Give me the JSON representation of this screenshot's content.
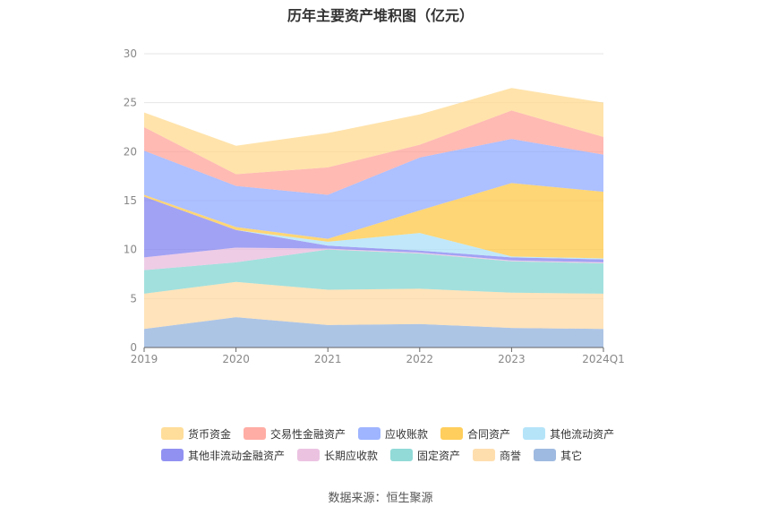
{
  "chart_data": {
    "type": "area",
    "stacked": true,
    "title": "历年主要资产堆积图（亿元）",
    "categories": [
      "2019",
      "2020",
      "2021",
      "2022",
      "2023",
      "2024Q1"
    ],
    "ylim": [
      0,
      30
    ],
    "yticks": [
      "0",
      "5",
      "10",
      "15",
      "20",
      "25",
      "30"
    ],
    "grid": true,
    "legend_position": "bottom",
    "series": [
      {
        "name": "其它",
        "color": "#8EAEDB",
        "values": [
          1.9,
          3.1,
          2.3,
          2.4,
          2.0,
          1.9
        ]
      },
      {
        "name": "商誉",
        "color": "#FFD8A0",
        "values": [
          3.6,
          3.6,
          3.6,
          3.6,
          3.6,
          3.6
        ]
      },
      {
        "name": "固定资产",
        "color": "#7ED4D0",
        "values": [
          2.4,
          2.0,
          4.1,
          3.6,
          3.2,
          3.1
        ]
      },
      {
        "name": "长期应收款",
        "color": "#E8B8DC",
        "values": [
          1.3,
          1.5,
          0.1,
          0.1,
          0.1,
          0.1
        ]
      },
      {
        "name": "其他非流动金融资产",
        "color": "#7E7EF0",
        "values": [
          6.2,
          1.8,
          0.3,
          0.2,
          0.3,
          0.3
        ]
      },
      {
        "name": "其他流动资产",
        "color": "#A8DFF8",
        "values": [
          0.0,
          0.0,
          0.4,
          1.8,
          0.1,
          0.1
        ]
      },
      {
        "name": "合同资产",
        "color": "#FFC640",
        "values": [
          0.2,
          0.3,
          0.3,
          2.3,
          7.5,
          6.8
        ]
      },
      {
        "name": "应收账款",
        "color": "#8EA8FF",
        "values": [
          4.5,
          4.2,
          4.5,
          5.4,
          4.5,
          3.8
        ]
      },
      {
        "name": "交易性金融资产",
        "color": "#FF9F95",
        "values": [
          2.4,
          1.2,
          2.8,
          1.3,
          2.9,
          1.8
        ]
      },
      {
        "name": "货币资金",
        "color": "#FFD88A",
        "values": [
          1.5,
          2.9,
          3.5,
          3.1,
          2.3,
          3.5
        ]
      }
    ],
    "legend": [
      [
        "货币资金",
        "交易性金融资产",
        "应收账款",
        "合同资产",
        "其他流动资产"
      ],
      [
        "其他非流动金融资产",
        "长期应收款",
        "固定资产",
        "商誉",
        "其它"
      ]
    ]
  },
  "source_text": "数据来源：恒生聚源"
}
